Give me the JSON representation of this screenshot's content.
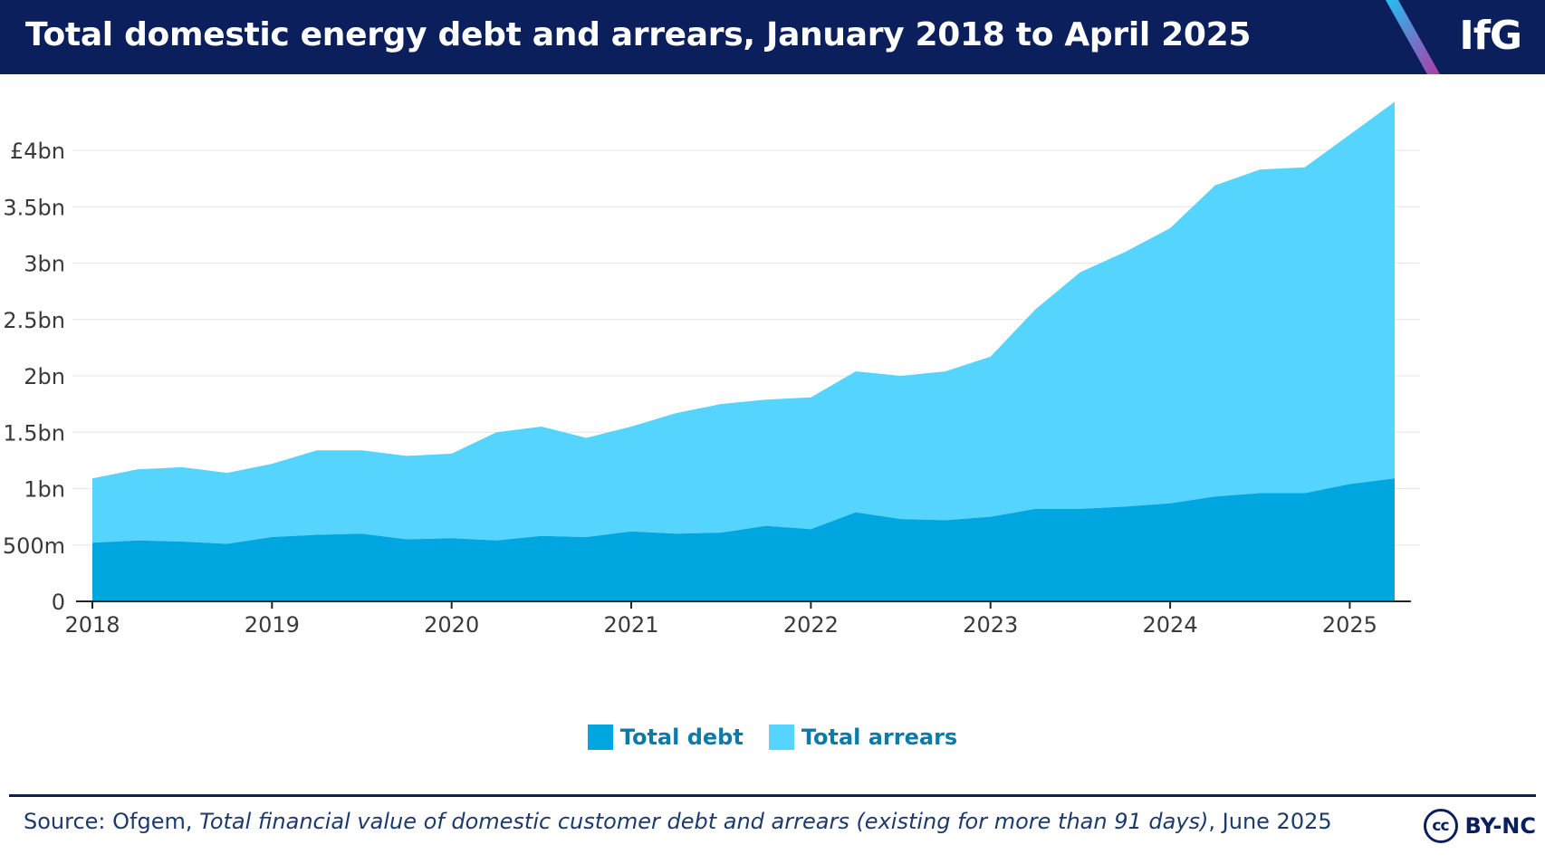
{
  "header": {
    "title": "Total domestic energy debt and arrears, January 2018 to April 2025",
    "logo": "IfG"
  },
  "legend": {
    "debt_label": "Total debt",
    "arrears_label": "Total arrears"
  },
  "footer": {
    "source_prefix": "Source: Ofgem, ",
    "source_title": "Total financial value of domestic customer debt and arrears (existing for more than 91 days)",
    "source_suffix": ", June 2025",
    "license_label": "BY-NC",
    "license_icon": "cc-icon"
  },
  "colors": {
    "header_bg": "#0b1f5c",
    "debt": "#00a6e0",
    "arrears": "#55d4fe",
    "legend_text": "#0e7aa8"
  },
  "chart_data": {
    "type": "area",
    "stacked": true,
    "unit": "£ billion",
    "x": [
      2018,
      2018.25,
      2018.5,
      2018.75,
      2019,
      2019.25,
      2019.5,
      2019.75,
      2020,
      2020.25,
      2020.5,
      2020.75,
      2021,
      2021.25,
      2021.5,
      2021.75,
      2022,
      2022.25,
      2022.5,
      2022.75,
      2023,
      2023.25,
      2023.5,
      2023.75,
      2024,
      2024.25,
      2024.5,
      2024.75,
      2025,
      2025.25
    ],
    "series": [
      {
        "name": "Total debt",
        "values": [
          0.52,
          0.54,
          0.53,
          0.51,
          0.57,
          0.59,
          0.6,
          0.55,
          0.56,
          0.54,
          0.58,
          0.57,
          0.62,
          0.6,
          0.61,
          0.67,
          0.64,
          0.79,
          0.73,
          0.72,
          0.75,
          0.82,
          0.82,
          0.84,
          0.87,
          0.93,
          0.96,
          0.96,
          1.04,
          1.09
        ]
      },
      {
        "name": "Total arrears",
        "values": [
          0.57,
          0.63,
          0.66,
          0.63,
          0.65,
          0.75,
          0.74,
          0.74,
          0.75,
          0.96,
          0.97,
          0.88,
          0.93,
          1.07,
          1.14,
          1.12,
          1.17,
          1.25,
          1.27,
          1.32,
          1.42,
          1.77,
          2.1,
          2.26,
          2.44,
          2.76,
          2.87,
          2.89,
          3.1,
          3.34
        ]
      }
    ],
    "y_ticks": [
      {
        "v": 0,
        "label": "0"
      },
      {
        "v": 0.5,
        "label": "500m"
      },
      {
        "v": 1,
        "label": "1bn"
      },
      {
        "v": 1.5,
        "label": "1.5bn"
      },
      {
        "v": 2,
        "label": "2bn"
      },
      {
        "v": 2.5,
        "label": "2.5bn"
      },
      {
        "v": 3,
        "label": "3bn"
      },
      {
        "v": 3.5,
        "label": "3.5bn"
      },
      {
        "v": 4,
        "label": "£4bn"
      }
    ],
    "x_ticks": [
      2018,
      2019,
      2020,
      2021,
      2022,
      2023,
      2024,
      2025
    ],
    "xlim": [
      2018,
      2025.25
    ],
    "ylim": [
      0,
      4.45
    ],
    "grid": true,
    "legend_position": "bottom-center"
  }
}
